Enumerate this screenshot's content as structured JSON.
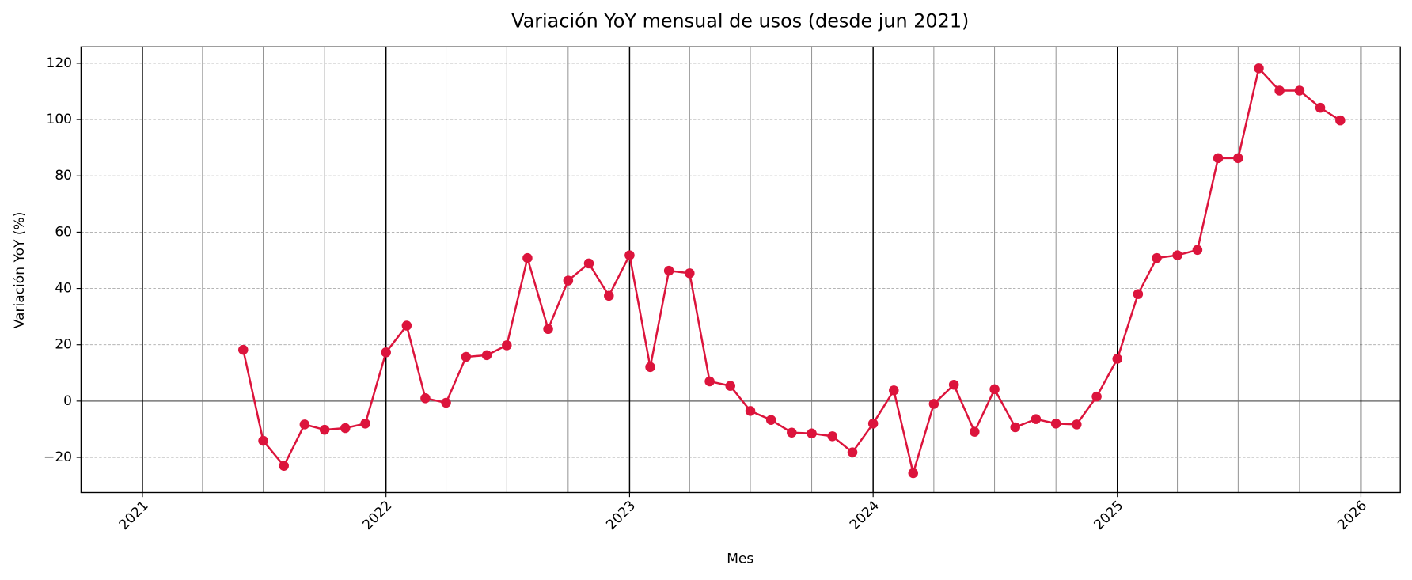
{
  "chart_data": {
    "type": "line",
    "title": "Variación YoY mensual de usos (desde jun 2021)",
    "x_label": "Mes",
    "y_label": "Variación YoY (%)",
    "x": [
      "2021-06",
      "2021-07",
      "2021-08",
      "2021-09",
      "2021-10",
      "2021-11",
      "2021-12",
      "2022-01",
      "2022-02",
      "2022-03",
      "2022-04",
      "2022-05",
      "2022-06",
      "2022-07",
      "2022-08",
      "2022-09",
      "2022-10",
      "2022-11",
      "2022-12",
      "2023-01",
      "2023-02",
      "2023-03",
      "2023-04",
      "2023-05",
      "2023-06",
      "2023-07",
      "2023-08",
      "2023-09",
      "2023-10",
      "2023-11",
      "2023-12",
      "2024-01",
      "2024-02",
      "2024-03",
      "2024-04",
      "2024-05",
      "2024-06",
      "2024-07",
      "2024-08",
      "2024-09",
      "2024-10",
      "2024-11",
      "2024-12",
      "2025-01",
      "2025-02",
      "2025-03",
      "2025-04",
      "2025-05",
      "2025-06",
      "2025-07",
      "2025-08",
      "2025-09",
      "2025-10",
      "2025-11",
      "2025-12"
    ],
    "series": [
      {
        "color": "#dc143c",
        "values": [
          18.2,
          -14.1,
          -23,
          -8.3,
          -10.2,
          -9.6,
          -8,
          17.3,
          26.8,
          1,
          -0.6,
          15.7,
          16.3,
          19.8,
          50.8,
          25.6,
          42.8,
          48.9,
          37.4,
          51.8,
          12.1,
          46.3,
          45.4,
          7,
          5.4,
          -3.5,
          -6.7,
          -11.2,
          -11.5,
          -12.5,
          -18.2,
          -8,
          3.8,
          -25.6,
          -1,
          5.8,
          -10.9,
          4.2,
          -9.3,
          -6.4,
          -8,
          -8.3,
          1.6,
          15,
          38,
          50.8,
          51.8,
          53.7,
          86.3,
          86.3,
          118.2,
          110.3,
          110.3,
          104.2,
          99.7
        ]
      }
    ],
    "xlim": [
      "2020-10",
      "2026-03"
    ],
    "xticks": [
      "2021",
      "2022",
      "2023",
      "2024",
      "2025",
      "2026"
    ],
    "ylim": [
      -32.5,
      125.8
    ],
    "yticks": [
      {
        "value": -20,
        "label": "−20"
      },
      0,
      20,
      40,
      60,
      80,
      100,
      120
    ],
    "grid": true
  }
}
